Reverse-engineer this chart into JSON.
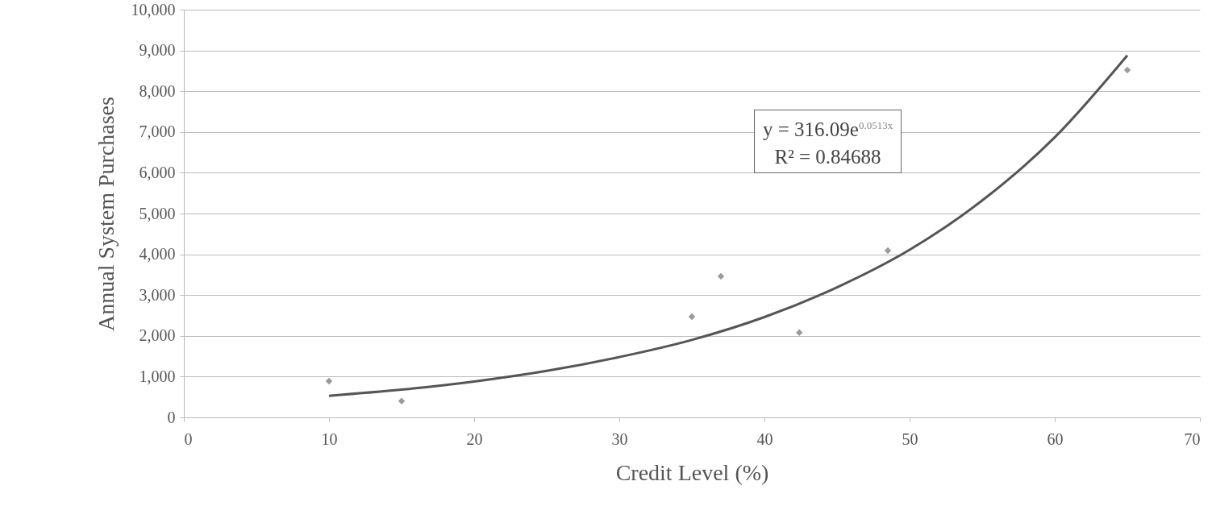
{
  "chart_data": {
    "type": "scatter",
    "xlabel": "Credit Level (%)",
    "ylabel": "Annual System Purchases",
    "series": [
      {
        "color": "#9a9a9a",
        "marker": "diamond",
        "x": [
          10,
          15,
          35,
          37,
          42.4,
          48.5,
          65
        ],
        "values": [
          890,
          400,
          2470,
          3460,
          2080,
          4090,
          8520
        ]
      },
      {
        "type": "line",
        "color": "#555555",
        "marker": "none",
        "x": [
          10,
          15,
          20,
          25,
          30,
          35,
          40,
          45,
          50,
          55,
          60,
          65
        ],
        "values": [
          530,
          680,
          880,
          1140,
          1480,
          1900,
          2460,
          3190,
          4110,
          5320,
          6870,
          8880
        ]
      }
    ],
    "xlim": [
      0,
      70
    ],
    "xticks": [
      0,
      10,
      20,
      30,
      40,
      50,
      60,
      70
    ],
    "ylim": [
      0,
      10000
    ],
    "yticks": [
      0,
      {
        "value": 1000,
        "label": "1,000"
      },
      {
        "value": 2000,
        "label": "2,000"
      },
      {
        "value": 3000,
        "label": "3,000"
      },
      {
        "value": 4000,
        "label": "4,000"
      },
      {
        "value": 5000,
        "label": "5,000"
      },
      {
        "value": 6000,
        "label": "6,000"
      },
      {
        "value": 7000,
        "label": "7,000"
      },
      {
        "value": 8000,
        "label": "8,000"
      },
      {
        "value": 9000,
        "label": "9,000"
      },
      {
        "value": 10000,
        "label": "10,000"
      }
    ],
    "grid": "y",
    "annotations": [
      "y = 316.09e$^{0.0513x}$",
      "R² = 0.84688"
    ]
  }
}
